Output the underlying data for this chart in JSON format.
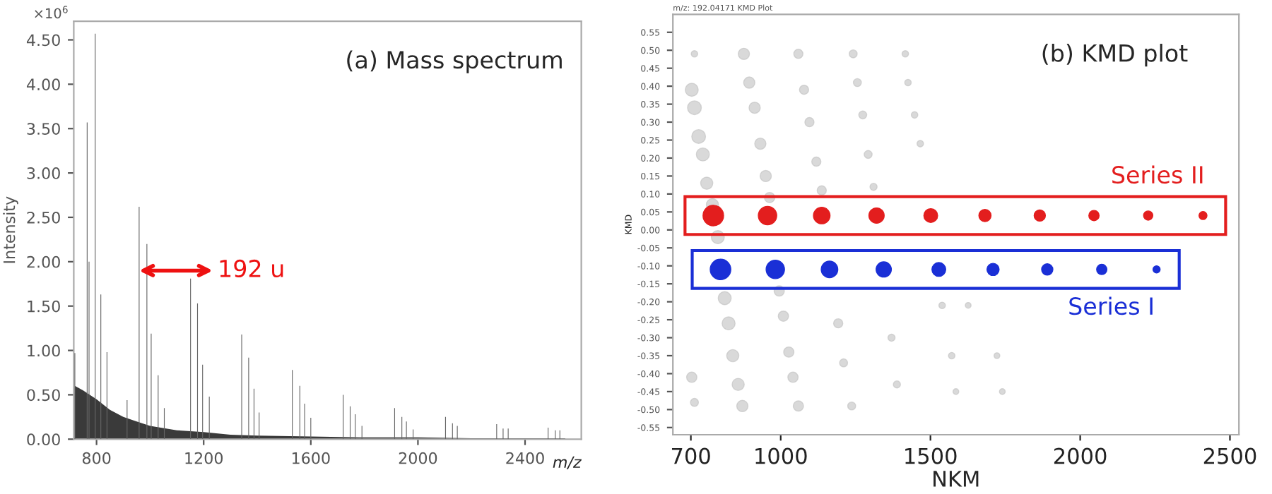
{
  "chart_data": [
    {
      "type": "bar",
      "title": "(a) Mass spectrum",
      "xlabel": "m/z",
      "ylabel": "Intensity",
      "annotations": [
        "×10$^{6}$",
        {
          "text": "192 u",
          "x": 959,
          "y": 1.9
        }
      ],
      "xlim": [
        715,
        2610
      ],
      "xticks": [
        800,
        1200,
        1600,
        2000,
        2400
      ],
      "ylim": [
        0,
        4.71
      ],
      "yticks": [
        {
          "value": 0,
          "label": "0.00"
        },
        {
          "value": 0.5,
          "label": "0.50"
        },
        {
          "value": 1,
          "label": "1.00"
        },
        {
          "value": 1.5,
          "label": "1.50"
        },
        {
          "value": 2,
          "label": "2.00"
        },
        {
          "value": 2.5,
          "label": "2.50"
        },
        {
          "value": 3,
          "label": "3.00"
        },
        {
          "value": 3.5,
          "label": "3.50"
        },
        {
          "value": 4,
          "label": "4.00"
        },
        {
          "value": 4.5,
          "label": "4.50"
        }
      ],
      "grid": false,
      "legend": false,
      "series": [
        {
          "type": "area",
          "color": "#3a3a3a",
          "x": [
            719,
            750,
            800,
            850,
            900,
            950,
            1000,
            1100,
            1200,
            1300,
            1400,
            1600,
            1800,
            2000,
            2200,
            2550
          ],
          "values": [
            0.6,
            0.55,
            0.45,
            0.33,
            0.25,
            0.2,
            0.15,
            0.1,
            0.08,
            0.05,
            0.04,
            0.03,
            0.02,
            0.02,
            0.01,
            0.01
          ]
        },
        {
          "type": "bar",
          "color": "#666666",
          "x": [
            719,
            765,
            772,
            795,
            816,
            839,
            914,
            959,
            988,
            1004,
            1030,
            1053,
            1151,
            1177,
            1196,
            1221,
            1342,
            1368,
            1388,
            1407,
            1531,
            1559,
            1577,
            1600,
            1721,
            1747,
            1766,
            1791,
            1913,
            1940,
            1957,
            1982,
            2103,
            2129,
            2147,
            2294,
            2318,
            2337,
            2486,
            2513,
            2530
          ],
          "values": [
            0.97,
            3.57,
            2.0,
            4.57,
            1.63,
            0.98,
            0.44,
            2.62,
            2.2,
            1.19,
            0.72,
            0.35,
            1.81,
            1.53,
            0.84,
            0.48,
            1.18,
            0.92,
            0.57,
            0.3,
            0.78,
            0.6,
            0.4,
            0.24,
            0.5,
            0.37,
            0.28,
            0.15,
            0.35,
            0.25,
            0.2,
            0.11,
            0.25,
            0.18,
            0.15,
            0.17,
            0.12,
            0.12,
            0.13,
            0.1,
            0.1
          ]
        }
      ]
    },
    {
      "type": "bubble",
      "title": "(b) KMD plot",
      "xlabel": "NKM",
      "ylabel": "KMD",
      "annotations": [
        "m/z: 192.04171 KMD Plot"
      ],
      "xlim": [
        640,
        2530
      ],
      "xticks": [
        700,
        1000,
        1500,
        2000,
        2500
      ],
      "ylim": [
        -0.57,
        0.6
      ],
      "yticks": [
        {
          "value": 0.55,
          "label": "0.55"
        },
        {
          "value": 0.5,
          "label": "0.50"
        },
        {
          "value": 0.45,
          "label": "0.45"
        },
        {
          "value": 0.4,
          "label": "0.40"
        },
        {
          "value": 0.35,
          "label": "0.35"
        },
        {
          "value": 0.3,
          "label": "0.30"
        },
        {
          "value": 0.25,
          "label": "0.25"
        },
        {
          "value": 0.2,
          "label": "0.20"
        },
        {
          "value": 0.15,
          "label": "0.15"
        },
        {
          "value": 0.1,
          "label": "0.10"
        },
        {
          "value": 0.05,
          "label": "0.05"
        },
        {
          "value": 0,
          "label": "0.00"
        },
        {
          "value": -0.05,
          "label": "-0.05"
        },
        {
          "value": -0.1,
          "label": "-0.10"
        },
        {
          "value": -0.15,
          "label": "-0.15"
        },
        {
          "value": -0.2,
          "label": "-0.20"
        },
        {
          "value": -0.25,
          "label": "-0.25"
        },
        {
          "value": -0.3,
          "label": "-0.30"
        },
        {
          "value": -0.35,
          "label": "-0.35"
        },
        {
          "value": -0.4,
          "label": "-0.40"
        },
        {
          "value": -0.45,
          "label": "-0.45"
        },
        {
          "value": -0.5,
          "label": "-0.50"
        },
        {
          "value": -0.55,
          "label": "-0.55"
        }
      ],
      "grid": false,
      "legend": false,
      "series": [
        {
          "color": "#c0c0c0",
          "x": [
            703,
            712,
            726,
            740,
            753,
            772,
            790,
            813,
            826,
            840,
            858,
            872,
            877,
            895,
            913,
            932,
            950,
            963,
            995,
            1009,
            1027,
            1041,
            1059,
            1059,
            1078,
            1096,
            1119,
            1137,
            1192,
            1210,
            1237,
            1242,
            1256,
            1274,
            1292,
            1310,
            1370,
            1388,
            1416,
            1425,
            1447,
            1466,
            1539,
            1571,
            1585,
            1722,
            1740,
            712,
            1626,
            712,
            703
          ],
          "values": [
            0.39,
            0.34,
            0.26,
            0.21,
            0.13,
            0.07,
            -0.02,
            -0.19,
            -0.26,
            -0.35,
            -0.43,
            -0.49,
            0.49,
            0.41,
            0.34,
            0.24,
            0.15,
            0.09,
            -0.17,
            -0.24,
            -0.34,
            -0.41,
            -0.49,
            0.49,
            0.39,
            0.3,
            0.19,
            0.11,
            -0.26,
            -0.37,
            -0.49,
            0.49,
            0.41,
            0.32,
            0.21,
            0.12,
            -0.3,
            -0.43,
            0.49,
            0.41,
            0.32,
            0.24,
            -0.21,
            -0.35,
            -0.45,
            -0.35,
            -0.45,
            0.49,
            -0.21,
            -0.48,
            -0.41
          ],
          "sizes": [
            0.4,
            0.45,
            0.45,
            0.4,
            0.35,
            0.35,
            0.4,
            0.4,
            0.4,
            0.35,
            0.35,
            0.3,
            0.3,
            0.3,
            0.3,
            0.3,
            0.3,
            0.25,
            0.25,
            0.25,
            0.25,
            0.25,
            0.25,
            0.2,
            0.2,
            0.2,
            0.2,
            0.2,
            0.2,
            0.15,
            0.15,
            0.15,
            0.15,
            0.15,
            0.15,
            0.12,
            0.12,
            0.12,
            0.1,
            0.1,
            0.1,
            0.1,
            0.1,
            0.1,
            0.08,
            0.08,
            0.08,
            0.1,
            0.08,
            0.15,
            0.25
          ]
        },
        {
          "name": "Series II",
          "color": "#e31e1e",
          "x": [
            775,
            956,
            1137,
            1320,
            1501,
            1682,
            1865,
            2046,
            2227,
            2410
          ],
          "values": [
            0.04,
            0.04,
            0.04,
            0.04,
            0.04,
            0.04,
            0.04,
            0.04,
            0.04,
            0.04
          ],
          "sizes": [
            1,
            0.8,
            0.65,
            0.55,
            0.45,
            0.35,
            0.3,
            0.25,
            0.2,
            0.15
          ]
        },
        {
          "name": "Series I",
          "color": "#1a2fd6",
          "x": [
            799,
            982,
            1163,
            1344,
            1528,
            1709,
            1890,
            2072,
            2255
          ],
          "values": [
            -0.11,
            -0.11,
            -0.11,
            -0.11,
            -0.11,
            -0.11,
            -0.11,
            -0.11,
            -0.11
          ],
          "sizes": [
            1,
            0.8,
            0.65,
            0.55,
            0.45,
            0.35,
            0.3,
            0.25,
            0.12
          ]
        }
      ]
    }
  ]
}
